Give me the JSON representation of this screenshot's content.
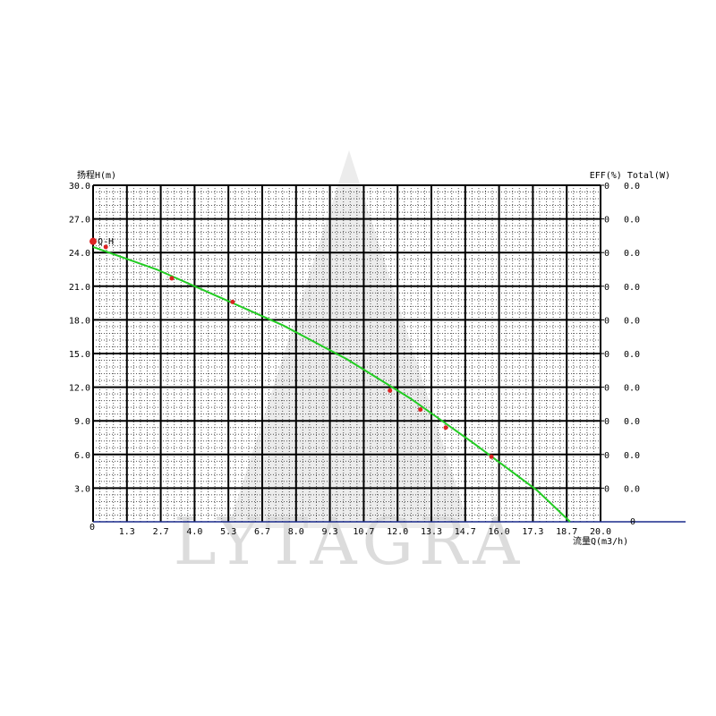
{
  "watermark": {
    "text": "LYTAGRA"
  },
  "chart_data": {
    "type": "line",
    "left_axis_title": "扬程H(m)",
    "right_axis_title": "EFF(%) Total(W)",
    "xlabel": "流量Q(m3/h)",
    "xlim": [
      0,
      20.0
    ],
    "ylim": [
      0,
      30.0
    ],
    "x_origin_label": "0",
    "right_origin_label": "0",
    "x_ticks": [
      "1.3",
      "2.7",
      "4.0",
      "5.3",
      "6.7",
      "8.0",
      "9.3",
      "10.7",
      "12.0",
      "13.3",
      "14.7",
      "16.0",
      "17.3",
      "18.7",
      "20.0"
    ],
    "x_tick_values": [
      1.333,
      2.667,
      4.0,
      5.333,
      6.667,
      8.0,
      9.333,
      10.667,
      12.0,
      13.333,
      14.667,
      16.0,
      17.333,
      18.667,
      20.0
    ],
    "y_ticks": [
      "30.0",
      "27.0",
      "24.0",
      "21.0",
      "18.0",
      "15.0",
      "12.0",
      "9.0",
      "6.0",
      "3.0"
    ],
    "y_tick_values": [
      30,
      27,
      24,
      21,
      18,
      15,
      12,
      9,
      6,
      3
    ],
    "eff_ticks": [
      "0",
      "0",
      "0",
      "0",
      "0",
      "0",
      "0",
      "0",
      "0",
      "0"
    ],
    "total_ticks": [
      "0.0",
      "0.0",
      "0.0",
      "0.0",
      "0.0",
      "0.0",
      "0.0",
      "0.0",
      "0.0",
      "0.0"
    ],
    "curve_label": "Q-H",
    "series": [
      {
        "name": "Q-H",
        "color": "#22cc22",
        "x": [
          0,
          2.5,
          5.0,
          7.5,
          10.0,
          12.5,
          15.0,
          17.5,
          18.8
        ],
        "y": [
          24.5,
          22.5,
          20.0,
          17.5,
          14.5,
          11.0,
          7.0,
          2.8,
          0
        ]
      }
    ],
    "measured_points": {
      "color": "#dd2222",
      "x": [
        0,
        0.5,
        3.1,
        5.5,
        11.7,
        12.9,
        13.9,
        15.7
      ],
      "y": [
        25.0,
        24.5,
        21.7,
        19.6,
        11.7,
        10.0,
        8.4,
        5.8
      ]
    },
    "baseline_color": "#1a2a8c",
    "grid": true
  }
}
